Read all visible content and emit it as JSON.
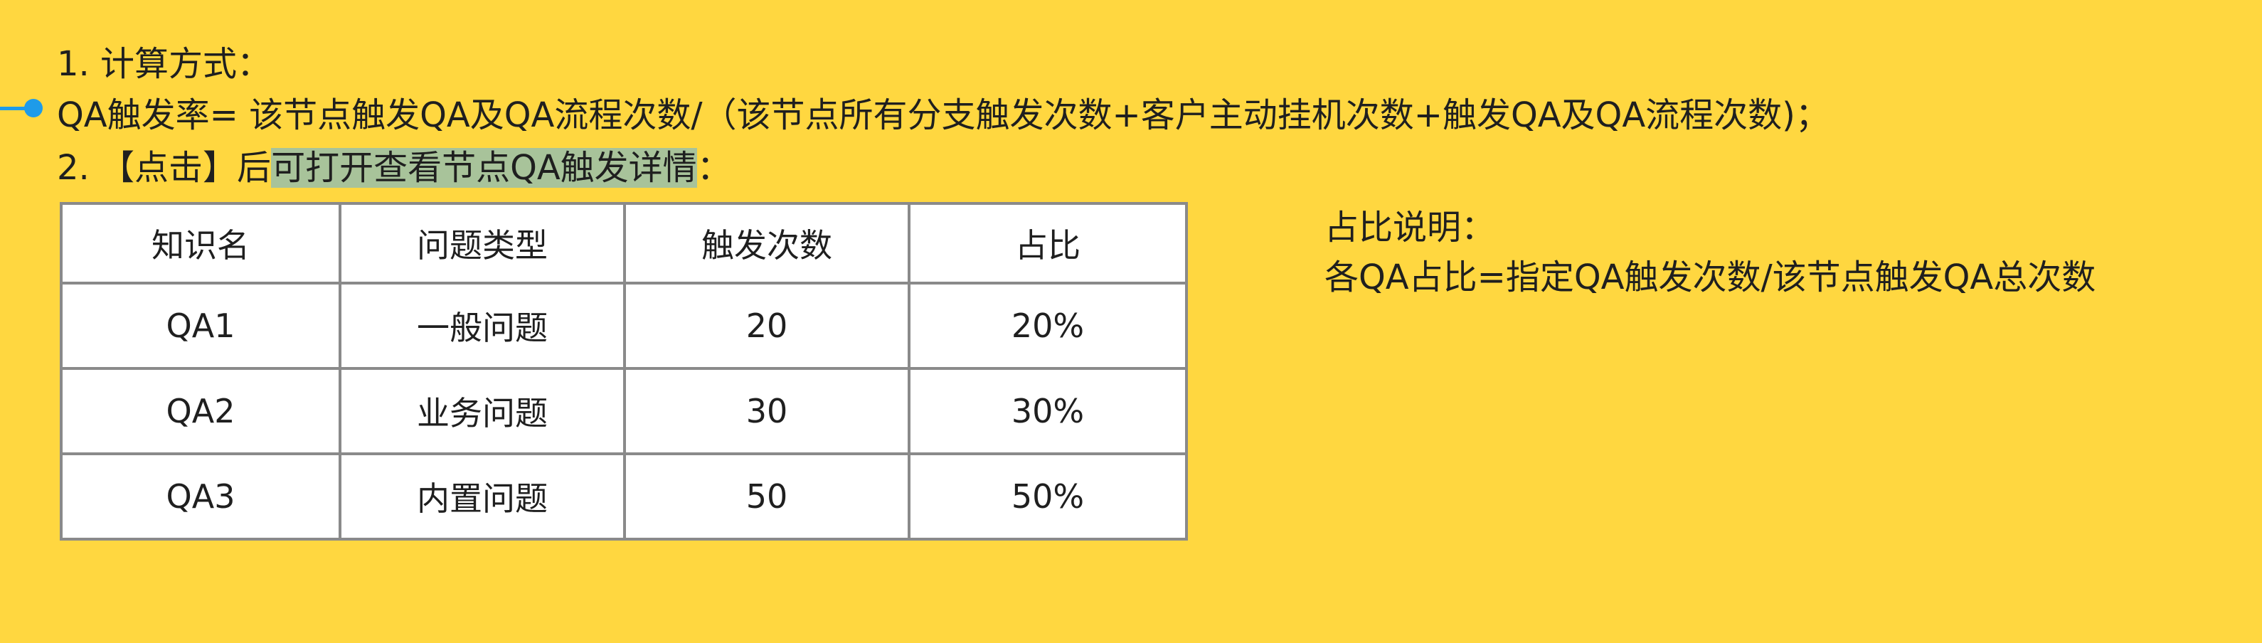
{
  "doc": {
    "line1": "1. 计算方式：",
    "line2": "QA触发率= 该节点触发QA及QA流程次数/（该节点所有分支触发次数+客户主动挂机次数+触发QA及QA流程次数)；",
    "line3_prefix": "2. 【点击】后",
    "line3_highlight": "可打开查看节点QA触发详情",
    "line3_suffix": "："
  },
  "table": {
    "headers": [
      "知识名",
      "问题类型",
      "触发次数",
      "占比"
    ],
    "rows": [
      [
        "QA1",
        "一般问题",
        "20",
        "20%"
      ],
      [
        "QA2",
        "业务问题",
        "30",
        "30%"
      ],
      [
        "QA3",
        "内置问题",
        "50",
        "50%"
      ]
    ]
  },
  "note": {
    "title": "占比说明：",
    "body": "各QA占比=指定QA触发次数/该节点触发QA总次数"
  },
  "colors": {
    "background": "#FFD740",
    "highlight": "#A8C39A",
    "connector": "#1E9BE9"
  }
}
